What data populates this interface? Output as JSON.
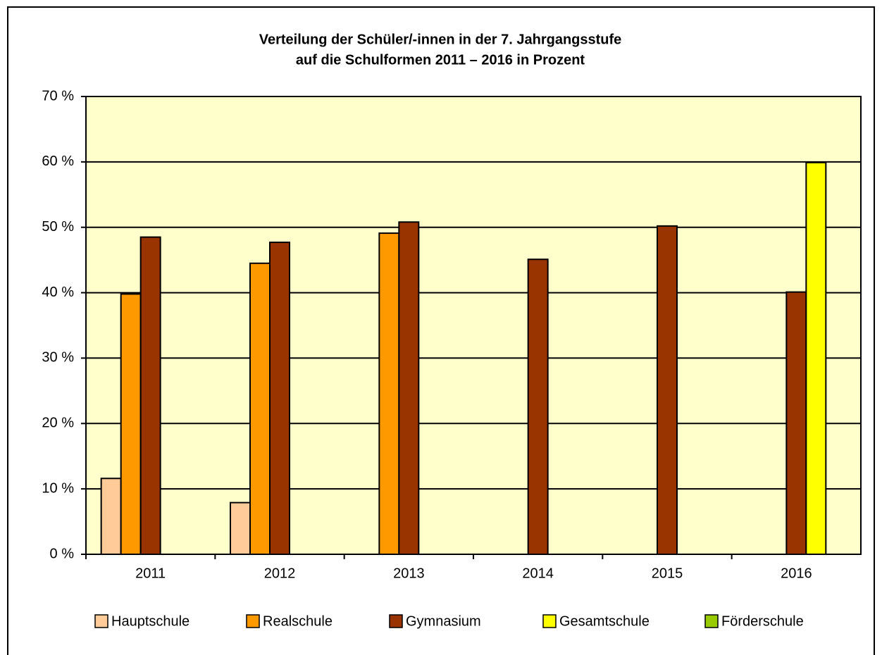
{
  "chart_data": {
    "type": "bar",
    "title": [
      "Verteilung der Schüler/-innen in der 7. Jahrgangsstufe",
      "auf die Schulformen 2011 – 2016 in Prozent"
    ],
    "categories": [
      "2011",
      "2012",
      "2013",
      "2014",
      "2015",
      "2016"
    ],
    "series": [
      {
        "name": "Hauptschule",
        "color": "#FFCC99",
        "values": [
          11.6,
          7.9,
          null,
          null,
          null,
          null
        ]
      },
      {
        "name": "Realschule",
        "color": "#FF9900",
        "values": [
          39.8,
          44.5,
          49.1,
          null,
          null,
          null
        ]
      },
      {
        "name": "Gymnasium",
        "color": "#993300",
        "values": [
          48.5,
          47.7,
          50.8,
          45.1,
          50.2,
          40.1
        ]
      },
      {
        "name": "Gesamtschule",
        "color": "#FFFF00",
        "values": [
          null,
          null,
          null,
          null,
          null,
          59.9
        ]
      },
      {
        "name": "Förderschule",
        "color": "#99CC00",
        "values": [
          null,
          null,
          null,
          null,
          null,
          null
        ]
      }
    ],
    "ylim": [
      0,
      70
    ],
    "yticks": [
      {
        "value": 0,
        "label": "0 %"
      },
      {
        "value": 10,
        "label": "10 %"
      },
      {
        "value": 20,
        "label": "20 %"
      },
      {
        "value": 30,
        "label": "30 %"
      },
      {
        "value": 40,
        "label": "40 %"
      },
      {
        "value": 50,
        "label": "50 %"
      },
      {
        "value": 60,
        "label": "60 %"
      },
      {
        "value": 70,
        "label": "70 %"
      }
    ],
    "grid": true,
    "plot_background": "#FFFFCC",
    "legend": "bottom"
  }
}
